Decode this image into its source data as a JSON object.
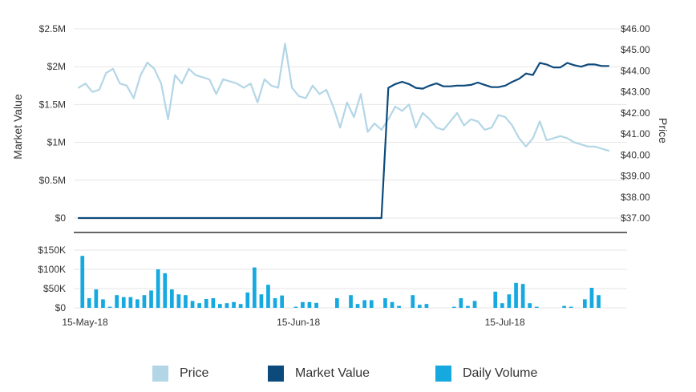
{
  "chart_data": {
    "type": "line",
    "x_ticks": [
      "15-May-18",
      "15-Jun-18",
      "15-Jul-18"
    ],
    "left_axis": {
      "label": "Market Value",
      "ticks": [
        "$0",
        "$0.5M",
        "$1M",
        "$1.5M",
        "$2M",
        "$2.5M"
      ],
      "range": [
        0,
        2500000
      ]
    },
    "right_axis": {
      "label": "Price",
      "ticks": [
        "$37.00",
        "$38.00",
        "$39.00",
        "$40.00",
        "$41.00",
        "$42.00",
        "$43.00",
        "$44.00",
        "$45.00",
        "$46.00"
      ],
      "range": [
        37,
        46
      ]
    },
    "volume_axis": {
      "ticks": [
        "$0",
        "$50K",
        "$100K",
        "$150K"
      ],
      "range": [
        0,
        150000
      ]
    },
    "series": [
      {
        "name": "Price",
        "axis": "right",
        "color": "#b3d6e6",
        "values": [
          43.2,
          43.4,
          43.0,
          43.1,
          43.9,
          44.1,
          43.4,
          43.3,
          42.7,
          43.8,
          44.4,
          44.1,
          43.4,
          41.7,
          43.8,
          43.4,
          44.1,
          43.8,
          43.7,
          43.6,
          42.9,
          43.6,
          43.5,
          43.4,
          43.2,
          43.4,
          42.5,
          43.6,
          43.3,
          43.2,
          45.3,
          43.2,
          42.8,
          42.7,
          43.3,
          42.9,
          43.1,
          42.3,
          41.3,
          42.5,
          41.8,
          42.9,
          41.1,
          41.5,
          41.2,
          41.7,
          42.3,
          42.1,
          42.4,
          41.3,
          42.0,
          41.7,
          41.3,
          41.2,
          41.6,
          42.0,
          41.4,
          41.7,
          41.6,
          41.2,
          41.3,
          41.9,
          41.8,
          41.4,
          40.8,
          40.4,
          40.8,
          41.6,
          40.7,
          40.8,
          40.9,
          40.8,
          40.6,
          40.5,
          40.4,
          40.4,
          40.3,
          40.2
        ]
      },
      {
        "name": "Market Value",
        "axis": "left",
        "color": "#0d4a7c",
        "values": [
          0,
          0,
          0,
          0,
          0,
          0,
          0,
          0,
          0,
          0,
          0,
          0,
          0,
          0,
          0,
          0,
          0,
          0,
          0,
          0,
          0,
          0,
          0,
          0,
          0,
          0,
          0,
          0,
          0,
          0,
          0,
          0,
          0,
          0,
          0,
          0,
          0,
          0,
          0,
          0,
          0,
          0,
          0,
          0,
          0,
          1720000,
          1770000,
          1800000,
          1770000,
          1720000,
          1710000,
          1750000,
          1780000,
          1740000,
          1740000,
          1750000,
          1750000,
          1760000,
          1790000,
          1760000,
          1730000,
          1730000,
          1750000,
          1800000,
          1840000,
          1910000,
          1890000,
          2050000,
          2030000,
          1990000,
          1990000,
          2050000,
          2020000,
          2000000,
          2030000,
          2030000,
          2010000,
          2010000
        ]
      },
      {
        "name": "Daily Volume",
        "axis": "volume",
        "type": "bar",
        "color": "#15a9e0",
        "values": [
          135000,
          25000,
          48000,
          22000,
          3000,
          33000,
          28000,
          28000,
          22000,
          33000,
          45000,
          100000,
          90000,
          48000,
          35000,
          33000,
          18000,
          12000,
          23000,
          25000,
          10000,
          12000,
          15000,
          10000,
          40000,
          105000,
          35000,
          60000,
          25000,
          32000,
          0,
          3000,
          15000,
          15000,
          13000,
          0,
          0,
          25000,
          0,
          33000,
          10000,
          20000,
          20000,
          0,
          25000,
          15000,
          5000,
          0,
          33000,
          8000,
          10000,
          0,
          0,
          0,
          3000,
          25000,
          5000,
          18000,
          0,
          0,
          42000,
          12000,
          35000,
          65000,
          62000,
          12000,
          3000,
          0,
          0,
          0,
          5000,
          3000,
          0,
          22000,
          52000,
          33000,
          0,
          0
        ]
      }
    ]
  },
  "legend": {
    "items": [
      {
        "label": "Price",
        "color": "#b3d6e6"
      },
      {
        "label": "Market Value",
        "color": "#0d4a7c"
      },
      {
        "label": "Daily Volume",
        "color": "#15a9e0"
      }
    ]
  }
}
